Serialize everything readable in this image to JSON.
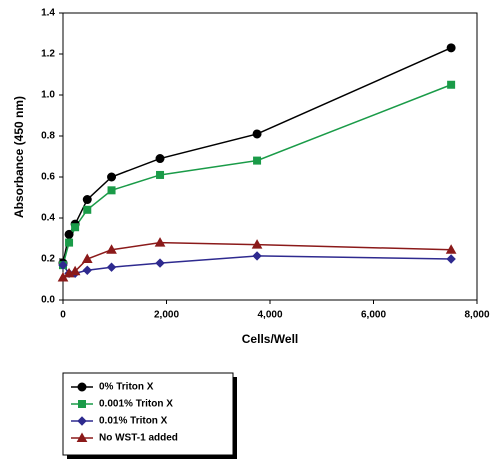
{
  "chart_data": {
    "type": "line",
    "xlabel": "Cells/Well",
    "ylabel": "Absorbance (450 nm)",
    "x": [
      0,
      117,
      234,
      469,
      938,
      1875,
      3750,
      7500
    ],
    "series": [
      {
        "name": "0% Triton X",
        "color": "#000000",
        "marker": "circle",
        "values": [
          0.18,
          0.32,
          0.37,
          0.49,
          0.6,
          0.69,
          0.81,
          1.23
        ]
      },
      {
        "name": "0.001% Triton X",
        "color": "#1a9b48",
        "marker": "square",
        "values": [
          0.17,
          0.28,
          0.355,
          0.44,
          0.535,
          0.61,
          0.68,
          1.05
        ]
      },
      {
        "name": "0.01% Triton X",
        "color": "#2e2a8f",
        "marker": "diamond",
        "values": [
          0.17,
          0.13,
          0.13,
          0.145,
          0.16,
          0.18,
          0.215,
          0.2
        ]
      },
      {
        "name": "No WST-1 added",
        "color": "#8b1a1a",
        "marker": "triangle",
        "values": [
          0.11,
          0.13,
          0.14,
          0.2,
          0.245,
          0.28,
          0.27,
          0.245
        ]
      }
    ],
    "xlim": [
      0,
      8000
    ],
    "xticks": [
      0,
      {
        "value": 2000,
        "label": "2,000"
      },
      {
        "value": 4000,
        "label": "4,000"
      },
      {
        "value": 6000,
        "label": "6,000"
      },
      {
        "value": 8000,
        "label": "8,000"
      }
    ],
    "ylim": [
      0,
      1.4
    ],
    "yticks": [
      {
        "value": 0,
        "label": "0.0"
      },
      0.2,
      0.4,
      0.6,
      0.8,
      {
        "value": 1,
        "label": "1.0"
      },
      1.2,
      1.4
    ],
    "grid": false,
    "legend": "bottom-left"
  }
}
